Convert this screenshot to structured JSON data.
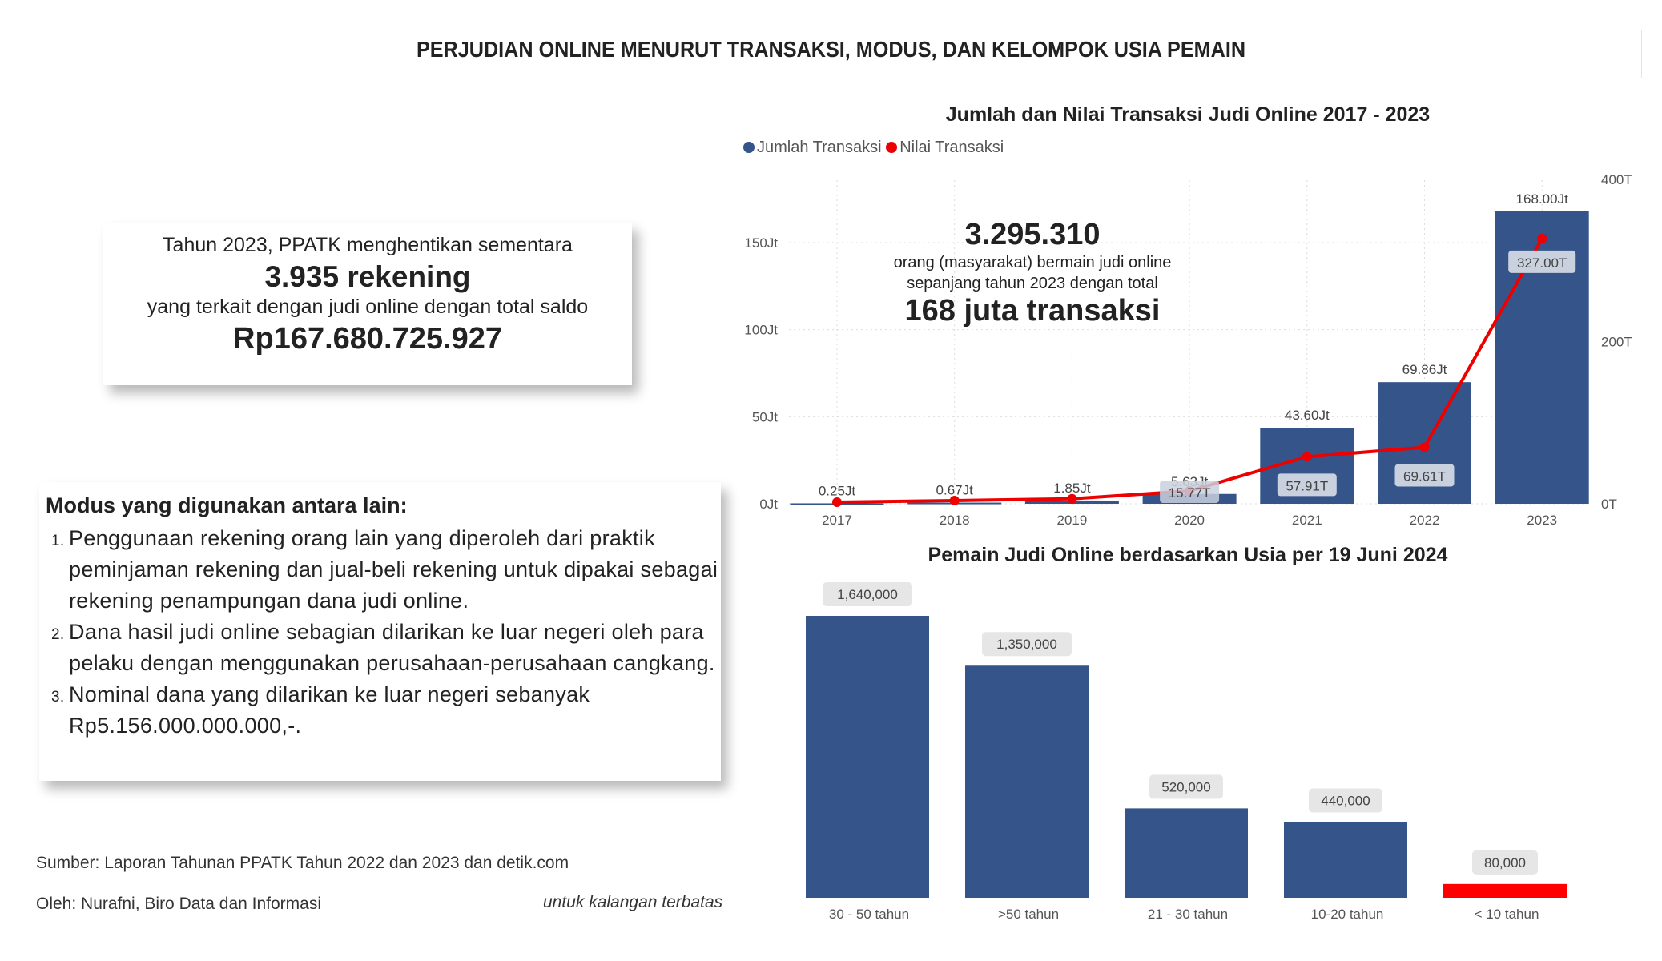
{
  "title": "PERJUDIAN ONLINE MENURUT TRANSAKSI, MODUS, DAN KELOMPOK USIA PEMAIN",
  "info_box": {
    "line1": "Tahun 2023, PPATK menghentikan sementara",
    "line2": "3.935 rekening",
    "line3": "yang terkait dengan judi online dengan total saldo",
    "line4": "Rp167.680.725.927"
  },
  "modus": {
    "heading": "Modus yang digunakan antara lain:",
    "items": [
      "Penggunaan rekening orang lain yang diperoleh dari praktik peminjaman rekening dan jual-beli rekening untuk dipakai sebagai rekening penampungan dana judi online.",
      "Dana hasil judi online sebagian dilarikan ke luar negeri oleh para pelaku dengan menggunakan perusahaan-perusahaan cangkang.",
      "Nominal dana yang dilarikan ke luar negeri sebanyak Rp5.156.000.000.000,-."
    ]
  },
  "footer": {
    "source": "Sumber: Laporan Tahunan PPATK Tahun 2022 dan 2023 dan detik.com",
    "author": "Oleh: Nurafni, Biro Data dan Informasi",
    "note": "untuk kalangan terbatas"
  },
  "annotation": {
    "number": "3.295.310",
    "text1": "orang (masyarakat) bermain judi online",
    "text2": "sepanjang tahun 2023 dengan total",
    "highlight": "168 juta transaksi"
  },
  "chart_data": [
    {
      "type": "bar+line",
      "title": "Jumlah dan Nilai Transaksi Judi Online 2017 - 2023",
      "categories": [
        "2017",
        "2018",
        "2019",
        "2020",
        "2021",
        "2022",
        "2023"
      ],
      "legend_placement": "top-left",
      "grid": true,
      "series": [
        {
          "name": "Jumlah Transaksi",
          "type": "bar",
          "axis": "left",
          "color": "#34548a",
          "values": [
            0.25,
            0.67,
            1.85,
            5.63,
            43.6,
            69.86,
            168.0
          ],
          "labels": [
            "0.25Jt",
            "0.67Jt",
            "1.85Jt",
            "5.63Jt",
            "43.60Jt",
            "69.86Jt",
            "168.00Jt"
          ]
        },
        {
          "name": "Nilai Transaksi",
          "type": "line",
          "axis": "right",
          "color": "#ee0000",
          "values": [
            2.0,
            3.97,
            6.18,
            15.77,
            57.91,
            69.61,
            327.0
          ],
          "labels": [
            "",
            "",
            "",
            "15.77T",
            "57.91T",
            "69.61T",
            "327.00T"
          ]
        }
      ],
      "y_left": {
        "ylim": [
          0,
          175
        ],
        "ticks": [
          0,
          50,
          100,
          150
        ],
        "tick_labels": [
          "0Jt",
          "50Jt",
          "100Jt",
          "150Jt"
        ]
      },
      "y_right": {
        "ylim": [
          0,
          400
        ],
        "ticks": [
          0,
          200,
          400
        ],
        "tick_labels": [
          "0T",
          "200T",
          "400T"
        ]
      }
    },
    {
      "type": "bar",
      "title": "Pemain Judi Online berdasarkan Usia per 19 Juni 2024",
      "categories": [
        "30 - 50 tahun",
        ">50 tahun",
        "21 - 30 tahun",
        "10-20 tahun",
        "< 10 tahun"
      ],
      "values": [
        1640000,
        1350000,
        520000,
        440000,
        80000
      ],
      "labels": [
        "1,640,000",
        "1,350,000",
        "520,000",
        "440,000",
        "80,000"
      ],
      "colors": [
        "#34548a",
        "#34548a",
        "#34548a",
        "#34548a",
        "#ff0000"
      ]
    }
  ]
}
